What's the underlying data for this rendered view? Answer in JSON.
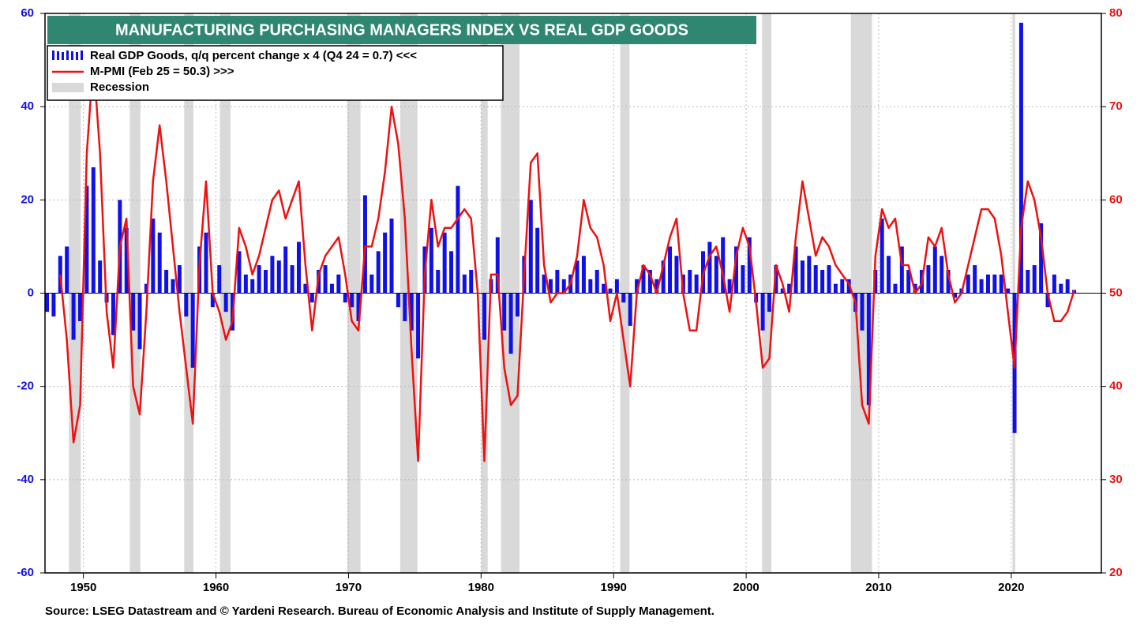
{
  "chart_data": {
    "type": "bar_line",
    "title": "MANUFACTURING PURCHASING MANAGERS INDEX VS REAL GDP GOODS",
    "source": "Source: LSEG Datastream and © Yardeni Research. Bureau of Economic Analysis and Institute of Supply Management.",
    "x": [
      1947.25,
      1947.75,
      1948.25,
      1948.75,
      1949.25,
      1949.75,
      1950.25,
      1950.75,
      1951.25,
      1951.75,
      1952.25,
      1952.75,
      1953.25,
      1953.75,
      1954.25,
      1954.75,
      1955.25,
      1955.75,
      1956.25,
      1956.75,
      1957.25,
      1957.75,
      1958.25,
      1958.75,
      1959.25,
      1959.75,
      1960.25,
      1960.75,
      1961.25,
      1961.75,
      1962.25,
      1962.75,
      1963.25,
      1963.75,
      1964.25,
      1964.75,
      1965.25,
      1965.75,
      1966.25,
      1966.75,
      1967.25,
      1967.75,
      1968.25,
      1968.75,
      1969.25,
      1969.75,
      1970.25,
      1970.75,
      1971.25,
      1971.75,
      1972.25,
      1972.75,
      1973.25,
      1973.75,
      1974.25,
      1974.75,
      1975.25,
      1975.75,
      1976.25,
      1976.75,
      1977.25,
      1977.75,
      1978.25,
      1978.75,
      1979.25,
      1979.75,
      1980.25,
      1980.75,
      1981.25,
      1981.75,
      1982.25,
      1982.75,
      1983.25,
      1983.75,
      1984.25,
      1984.75,
      1985.25,
      1985.75,
      1986.25,
      1986.75,
      1987.25,
      1987.75,
      1988.25,
      1988.75,
      1989.25,
      1989.75,
      1990.25,
      1990.75,
      1991.25,
      1991.75,
      1992.25,
      1992.75,
      1993.25,
      1993.75,
      1994.25,
      1994.75,
      1995.25,
      1995.75,
      1996.25,
      1996.75,
      1997.25,
      1997.75,
      1998.25,
      1998.75,
      1999.25,
      1999.75,
      2000.25,
      2000.75,
      2001.25,
      2001.75,
      2002.25,
      2002.75,
      2003.25,
      2003.75,
      2004.25,
      2004.75,
      2005.25,
      2005.75,
      2006.25,
      2006.75,
      2007.25,
      2007.75,
      2008.25,
      2008.75,
      2009.25,
      2009.75,
      2010.25,
      2010.75,
      2011.25,
      2011.75,
      2012.25,
      2012.75,
      2013.25,
      2013.75,
      2014.25,
      2014.75,
      2015.25,
      2015.75,
      2016.25,
      2016.75,
      2017.25,
      2017.75,
      2018.25,
      2018.75,
      2019.25,
      2019.75,
      2020.25,
      2020.75,
      2021.25,
      2021.75,
      2022.25,
      2022.75,
      2023.25,
      2023.75,
      2024.25,
      2024.75
    ],
    "series": [
      {
        "name": "Real GDP Goods, q/q percent change x 4 (Q4 24 = 0.7) <<<",
        "color": "#1010e8",
        "kind": "bar",
        "values": [
          -4,
          -5,
          8,
          10,
          -10,
          -6,
          23,
          27,
          7,
          -2,
          -9,
          20,
          14,
          -8,
          -12,
          2,
          16,
          13,
          5,
          3,
          6,
          -5,
          -16,
          10,
          13,
          -3,
          6,
          -4,
          -8,
          9,
          4,
          3,
          6,
          5,
          8,
          7,
          10,
          6,
          11,
          2,
          -2,
          5,
          6,
          2,
          4,
          -2,
          -3,
          -6,
          21,
          4,
          9,
          13,
          16,
          -3,
          -6,
          -8,
          -14,
          10,
          14,
          5,
          13,
          9,
          23,
          4,
          5,
          0,
          -10,
          3,
          12,
          -8,
          -13,
          -5,
          8,
          20,
          14,
          4,
          3,
          5,
          3,
          4,
          7,
          8,
          3,
          5,
          2,
          1,
          3,
          -2,
          -7,
          3,
          6,
          5,
          3,
          7,
          10,
          8,
          4,
          5,
          4,
          9,
          11,
          8,
          12,
          3,
          10,
          6,
          12,
          -2,
          -8,
          -4,
          6,
          1,
          2,
          10,
          7,
          8,
          6,
          5,
          6,
          2,
          3,
          3,
          -4,
          -8,
          -24,
          5,
          16,
          8,
          2,
          10,
          5,
          2,
          5,
          6,
          10,
          8,
          5,
          -1,
          1,
          4,
          6,
          3,
          4,
          4,
          4,
          1,
          -30,
          58,
          5,
          6,
          15,
          -3,
          4,
          2,
          3,
          0.7
        ]
      },
      {
        "name": "M-PMI (Feb 25 = 50.3) >>>",
        "color": "#ee1111",
        "kind": "line",
        "axis": "y2",
        "values": [
          null,
          null,
          52,
          45,
          34,
          38,
          65,
          75,
          65,
          48,
          42,
          55,
          58,
          40,
          37,
          48,
          62,
          68,
          62,
          55,
          48,
          42,
          36,
          53,
          62,
          50,
          48,
          45,
          47,
          57,
          55,
          52,
          54,
          57,
          60,
          61,
          58,
          60,
          62,
          53,
          46,
          52,
          54,
          55,
          56,
          52,
          47,
          46,
          55,
          55,
          58,
          63,
          70,
          66,
          58,
          44,
          32,
          52,
          60,
          55,
          57,
          57,
          58,
          59,
          58,
          50,
          32,
          52,
          52,
          42,
          38,
          39,
          52,
          64,
          65,
          53,
          49,
          50,
          50,
          51,
          54,
          60,
          57,
          56,
          53,
          47,
          50,
          45,
          40,
          50,
          53,
          52,
          50,
          53,
          56,
          58,
          50,
          46,
          46,
          52,
          54,
          55,
          52,
          48,
          54,
          57,
          55,
          49,
          42,
          43,
          53,
          51,
          48,
          56,
          62,
          58,
          54,
          56,
          55,
          53,
          52,
          51,
          49,
          38,
          36,
          54,
          59,
          57,
          58,
          53,
          53,
          50,
          51,
          56,
          55,
          57,
          52,
          49,
          50,
          53,
          56,
          59,
          59,
          58,
          54,
          48,
          42,
          57,
          62,
          60,
          56,
          50,
          47,
          47,
          48,
          50.3
        ]
      }
    ],
    "recession": {
      "name": "Recession",
      "color": "#d9d9d9",
      "periods": [
        [
          1948.9,
          1949.8
        ],
        [
          1953.5,
          1954.3
        ],
        [
          1957.6,
          1958.3
        ],
        [
          1960.3,
          1961.1
        ],
        [
          1969.9,
          1970.9
        ],
        [
          1973.9,
          1975.2
        ],
        [
          1980.0,
          1980.5
        ],
        [
          1981.5,
          1982.9
        ],
        [
          1990.5,
          1991.2
        ],
        [
          2001.2,
          2001.9
        ],
        [
          2007.9,
          2009.5
        ],
        [
          2020.1,
          2020.3
        ]
      ]
    },
    "xlim": [
      1947.1,
      2026.8
    ],
    "xticks": [
      1950,
      1960,
      1970,
      1980,
      1990,
      2000,
      2010,
      2020
    ],
    "ylim": [
      -60,
      60
    ],
    "yticks": [
      -60,
      -40,
      -20,
      0,
      20,
      40,
      60
    ],
    "y2lim": [
      20,
      80
    ],
    "y2ticks": [
      20,
      30,
      40,
      50,
      60,
      70,
      80
    ],
    "grid": true
  }
}
